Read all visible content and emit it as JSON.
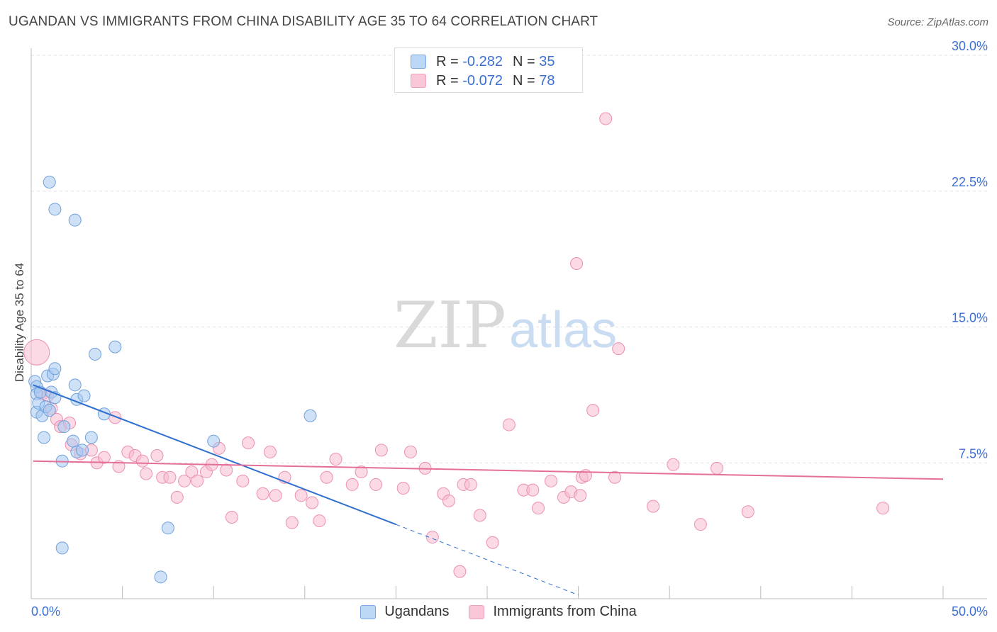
{
  "header": {
    "title": "UGANDAN VS IMMIGRANTS FROM CHINA DISABILITY AGE 35 TO 64 CORRELATION CHART",
    "source": "Source: ZipAtlas.com"
  },
  "watermark": {
    "zip": "ZIP",
    "atlas": "atlas"
  },
  "legend_top": [
    {
      "r_label": "R =",
      "r_value": "-0.282",
      "n_label": "N =",
      "n_value": "35"
    },
    {
      "r_label": "R =",
      "r_value": "-0.072",
      "n_label": "N =",
      "n_value": "78"
    }
  ],
  "colors": {
    "blue_fill": "#a8c8f0",
    "blue_stroke": "#6fa0dc",
    "blue_line": "#2f6fcf",
    "pink_fill": "#f7bcd0",
    "pink_stroke": "#ec8fb0",
    "pink_line": "#e46f9a",
    "tick_label": "#3b6fd4"
  },
  "chart_data": {
    "type": "scatter",
    "title": "UGANDAN VS IMMIGRANTS FROM CHINA DISABILITY AGE 35 TO 64 CORRELATION CHART",
    "xlabel": "",
    "ylabel": "Disability Age 35 to 64",
    "xlim": [
      0,
      50
    ],
    "ylim": [
      0,
      30
    ],
    "x_tick_labels": [
      "0.0%",
      "50.0%"
    ],
    "y_ticks": [
      7.5,
      15.0,
      22.5,
      30.0
    ],
    "y_tick_labels": [
      "7.5%",
      "15.0%",
      "22.5%",
      "30.0%"
    ],
    "grid": true,
    "series": [
      {
        "name": "Ugandans",
        "r": -0.282,
        "n": 35,
        "trend": {
          "x0": 0.1,
          "y0": 11.8,
          "x1": 20.0,
          "y1": 4.1,
          "dash_to_x": 30.0,
          "dash_to_y": 0.2
        },
        "points": [
          {
            "x": 0.2,
            "y": 12.0
          },
          {
            "x": 0.3,
            "y": 11.7
          },
          {
            "x": 0.3,
            "y": 11.3
          },
          {
            "x": 0.3,
            "y": 10.3
          },
          {
            "x": 0.4,
            "y": 10.8
          },
          {
            "x": 0.5,
            "y": 11.4
          },
          {
            "x": 0.6,
            "y": 10.1
          },
          {
            "x": 0.8,
            "y": 10.6
          },
          {
            "x": 0.7,
            "y": 8.9
          },
          {
            "x": 0.9,
            "y": 12.3
          },
          {
            "x": 1.0,
            "y": 10.4
          },
          {
            "x": 1.1,
            "y": 11.4
          },
          {
            "x": 1.2,
            "y": 12.4
          },
          {
            "x": 1.3,
            "y": 11.1
          },
          {
            "x": 1.3,
            "y": 12.7
          },
          {
            "x": 1.0,
            "y": 23.0
          },
          {
            "x": 1.3,
            "y": 21.5
          },
          {
            "x": 1.8,
            "y": 9.5
          },
          {
            "x": 2.3,
            "y": 8.7
          },
          {
            "x": 2.5,
            "y": 8.1
          },
          {
            "x": 2.8,
            "y": 8.2
          },
          {
            "x": 2.4,
            "y": 20.9
          },
          {
            "x": 2.4,
            "y": 11.8
          },
          {
            "x": 2.5,
            "y": 11.0
          },
          {
            "x": 2.9,
            "y": 11.2
          },
          {
            "x": 3.3,
            "y": 8.9
          },
          {
            "x": 3.5,
            "y": 13.5
          },
          {
            "x": 4.0,
            "y": 10.2
          },
          {
            "x": 4.6,
            "y": 13.9
          },
          {
            "x": 1.7,
            "y": 7.6
          },
          {
            "x": 1.7,
            "y": 2.8
          },
          {
            "x": 7.5,
            "y": 3.9
          },
          {
            "x": 7.1,
            "y": 1.2
          },
          {
            "x": 10.0,
            "y": 8.7
          },
          {
            "x": 15.3,
            "y": 10.1
          }
        ]
      },
      {
        "name": "Immigrants from China",
        "r": -0.072,
        "n": 78,
        "trend": {
          "x0": 0.1,
          "y0": 7.6,
          "x1": 50.0,
          "y1": 6.6
        },
        "points": [
          {
            "x": 0.3,
            "y": 13.6,
            "big": true
          },
          {
            "x": 0.6,
            "y": 11.3
          },
          {
            "x": 0.9,
            "y": 11.2
          },
          {
            "x": 1.1,
            "y": 10.5
          },
          {
            "x": 1.4,
            "y": 9.9
          },
          {
            "x": 1.6,
            "y": 9.5
          },
          {
            "x": 2.1,
            "y": 9.7
          },
          {
            "x": 2.2,
            "y": 8.5
          },
          {
            "x": 2.7,
            "y": 8.0
          },
          {
            "x": 3.3,
            "y": 8.2
          },
          {
            "x": 3.6,
            "y": 7.5
          },
          {
            "x": 4.0,
            "y": 7.8
          },
          {
            "x": 4.6,
            "y": 10.0
          },
          {
            "x": 4.8,
            "y": 7.3
          },
          {
            "x": 5.3,
            "y": 8.1
          },
          {
            "x": 5.7,
            "y": 7.9
          },
          {
            "x": 6.1,
            "y": 7.6
          },
          {
            "x": 6.3,
            "y": 6.9
          },
          {
            "x": 6.9,
            "y": 7.9
          },
          {
            "x": 7.2,
            "y": 6.7
          },
          {
            "x": 7.6,
            "y": 6.7
          },
          {
            "x": 8.0,
            "y": 5.6
          },
          {
            "x": 8.4,
            "y": 6.5
          },
          {
            "x": 8.8,
            "y": 7.0
          },
          {
            "x": 9.1,
            "y": 6.5
          },
          {
            "x": 9.6,
            "y": 7.0
          },
          {
            "x": 9.9,
            "y": 7.4
          },
          {
            "x": 10.3,
            "y": 8.3
          },
          {
            "x": 10.7,
            "y": 7.1
          },
          {
            "x": 11.0,
            "y": 4.5
          },
          {
            "x": 11.6,
            "y": 6.5
          },
          {
            "x": 11.9,
            "y": 8.6
          },
          {
            "x": 12.7,
            "y": 5.8
          },
          {
            "x": 13.1,
            "y": 8.1
          },
          {
            "x": 13.4,
            "y": 5.7
          },
          {
            "x": 13.9,
            "y": 6.7
          },
          {
            "x": 14.3,
            "y": 4.2
          },
          {
            "x": 14.8,
            "y": 5.7
          },
          {
            "x": 15.4,
            "y": 5.3
          },
          {
            "x": 15.8,
            "y": 4.3
          },
          {
            "x": 16.2,
            "y": 6.7
          },
          {
            "x": 16.7,
            "y": 7.7
          },
          {
            "x": 17.6,
            "y": 6.3
          },
          {
            "x": 18.1,
            "y": 7.0
          },
          {
            "x": 18.9,
            "y": 6.3
          },
          {
            "x": 19.2,
            "y": 8.2
          },
          {
            "x": 20.4,
            "y": 6.1
          },
          {
            "x": 20.8,
            "y": 8.1
          },
          {
            "x": 21.6,
            "y": 7.2
          },
          {
            "x": 22.0,
            "y": 3.4
          },
          {
            "x": 22.6,
            "y": 5.8
          },
          {
            "x": 22.9,
            "y": 5.4
          },
          {
            "x": 23.5,
            "y": 1.5
          },
          {
            "x": 23.7,
            "y": 6.3
          },
          {
            "x": 24.1,
            "y": 6.3
          },
          {
            "x": 24.6,
            "y": 4.6
          },
          {
            "x": 25.3,
            "y": 3.1
          },
          {
            "x": 26.2,
            "y": 9.6
          },
          {
            "x": 27.0,
            "y": 6.0
          },
          {
            "x": 27.5,
            "y": 6.0
          },
          {
            "x": 27.8,
            "y": 5.0
          },
          {
            "x": 28.5,
            "y": 6.5
          },
          {
            "x": 29.2,
            "y": 5.6
          },
          {
            "x": 29.6,
            "y": 5.9
          },
          {
            "x": 30.1,
            "y": 5.7
          },
          {
            "x": 30.2,
            "y": 6.7
          },
          {
            "x": 29.9,
            "y": 18.5
          },
          {
            "x": 30.4,
            "y": 6.8
          },
          {
            "x": 30.8,
            "y": 10.4
          },
          {
            "x": 31.5,
            "y": 26.5
          },
          {
            "x": 32.2,
            "y": 13.8
          },
          {
            "x": 34.1,
            "y": 5.1
          },
          {
            "x": 35.2,
            "y": 7.4
          },
          {
            "x": 36.7,
            "y": 4.1
          },
          {
            "x": 37.6,
            "y": 7.2
          },
          {
            "x": 39.3,
            "y": 4.8
          },
          {
            "x": 46.7,
            "y": 5.0
          },
          {
            "x": 32.0,
            "y": 6.7
          }
        ]
      }
    ]
  },
  "legend_bottom": [
    "Ugandans",
    "Immigrants from China"
  ]
}
